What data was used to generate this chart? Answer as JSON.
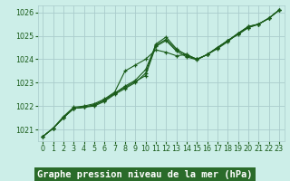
{
  "background_color": "#cceee8",
  "grid_color": "#aacccc",
  "line_color": "#1a5c1a",
  "title": "Graphe pression niveau de la mer (hPa)",
  "xlim": [
    -0.5,
    23.5
  ],
  "ylim": [
    1020.5,
    1026.3
  ],
  "yticks": [
    1021,
    1022,
    1023,
    1024,
    1025,
    1026
  ],
  "xticks": [
    0,
    1,
    2,
    3,
    4,
    5,
    6,
    7,
    8,
    9,
    10,
    11,
    12,
    13,
    14,
    15,
    16,
    17,
    18,
    19,
    20,
    21,
    22,
    23
  ],
  "series": [
    [
      1020.7,
      1021.05,
      1021.5,
      1021.9,
      1021.95,
      1022.0,
      1022.2,
      1022.5,
      1022.75,
      1023.0,
      1023.4,
      1024.65,
      1024.95,
      1024.45,
      1024.15,
      1024.0,
      1024.2,
      1024.45,
      1024.75,
      1025.1,
      1025.35,
      1025.5,
      1025.75,
      1026.1
    ],
    [
      1020.7,
      1021.05,
      1021.5,
      1021.9,
      1021.95,
      1022.05,
      1022.25,
      1022.55,
      1022.85,
      1023.1,
      1023.55,
      1024.6,
      1024.85,
      1024.4,
      1024.2,
      1024.0,
      1024.2,
      1024.5,
      1024.8,
      1025.05,
      1025.35,
      1025.5,
      1025.75,
      1026.1
    ],
    [
      1020.7,
      1021.05,
      1021.55,
      1021.95,
      1022.0,
      1022.1,
      1022.3,
      1022.6,
      1023.5,
      1023.75,
      1024.0,
      1024.4,
      1024.3,
      1024.15,
      1024.2,
      1024.0,
      1024.2,
      1024.5,
      1024.8,
      1025.1,
      1025.4,
      1025.5,
      1025.75,
      1026.1
    ],
    [
      1020.7,
      1021.05,
      1021.5,
      1021.9,
      1021.95,
      1022.05,
      1022.25,
      1022.55,
      1022.8,
      1023.05,
      1023.3,
      1024.55,
      1024.8,
      1024.35,
      1024.1,
      1023.98,
      1024.2,
      1024.5,
      1024.78,
      1025.1,
      1025.4,
      1025.5,
      1025.75,
      1026.1
    ]
  ],
  "title_fontsize": 7.5,
  "tick_fontsize": 5.8,
  "title_bg": "#2a6b2a",
  "title_fg": "#ffffff"
}
